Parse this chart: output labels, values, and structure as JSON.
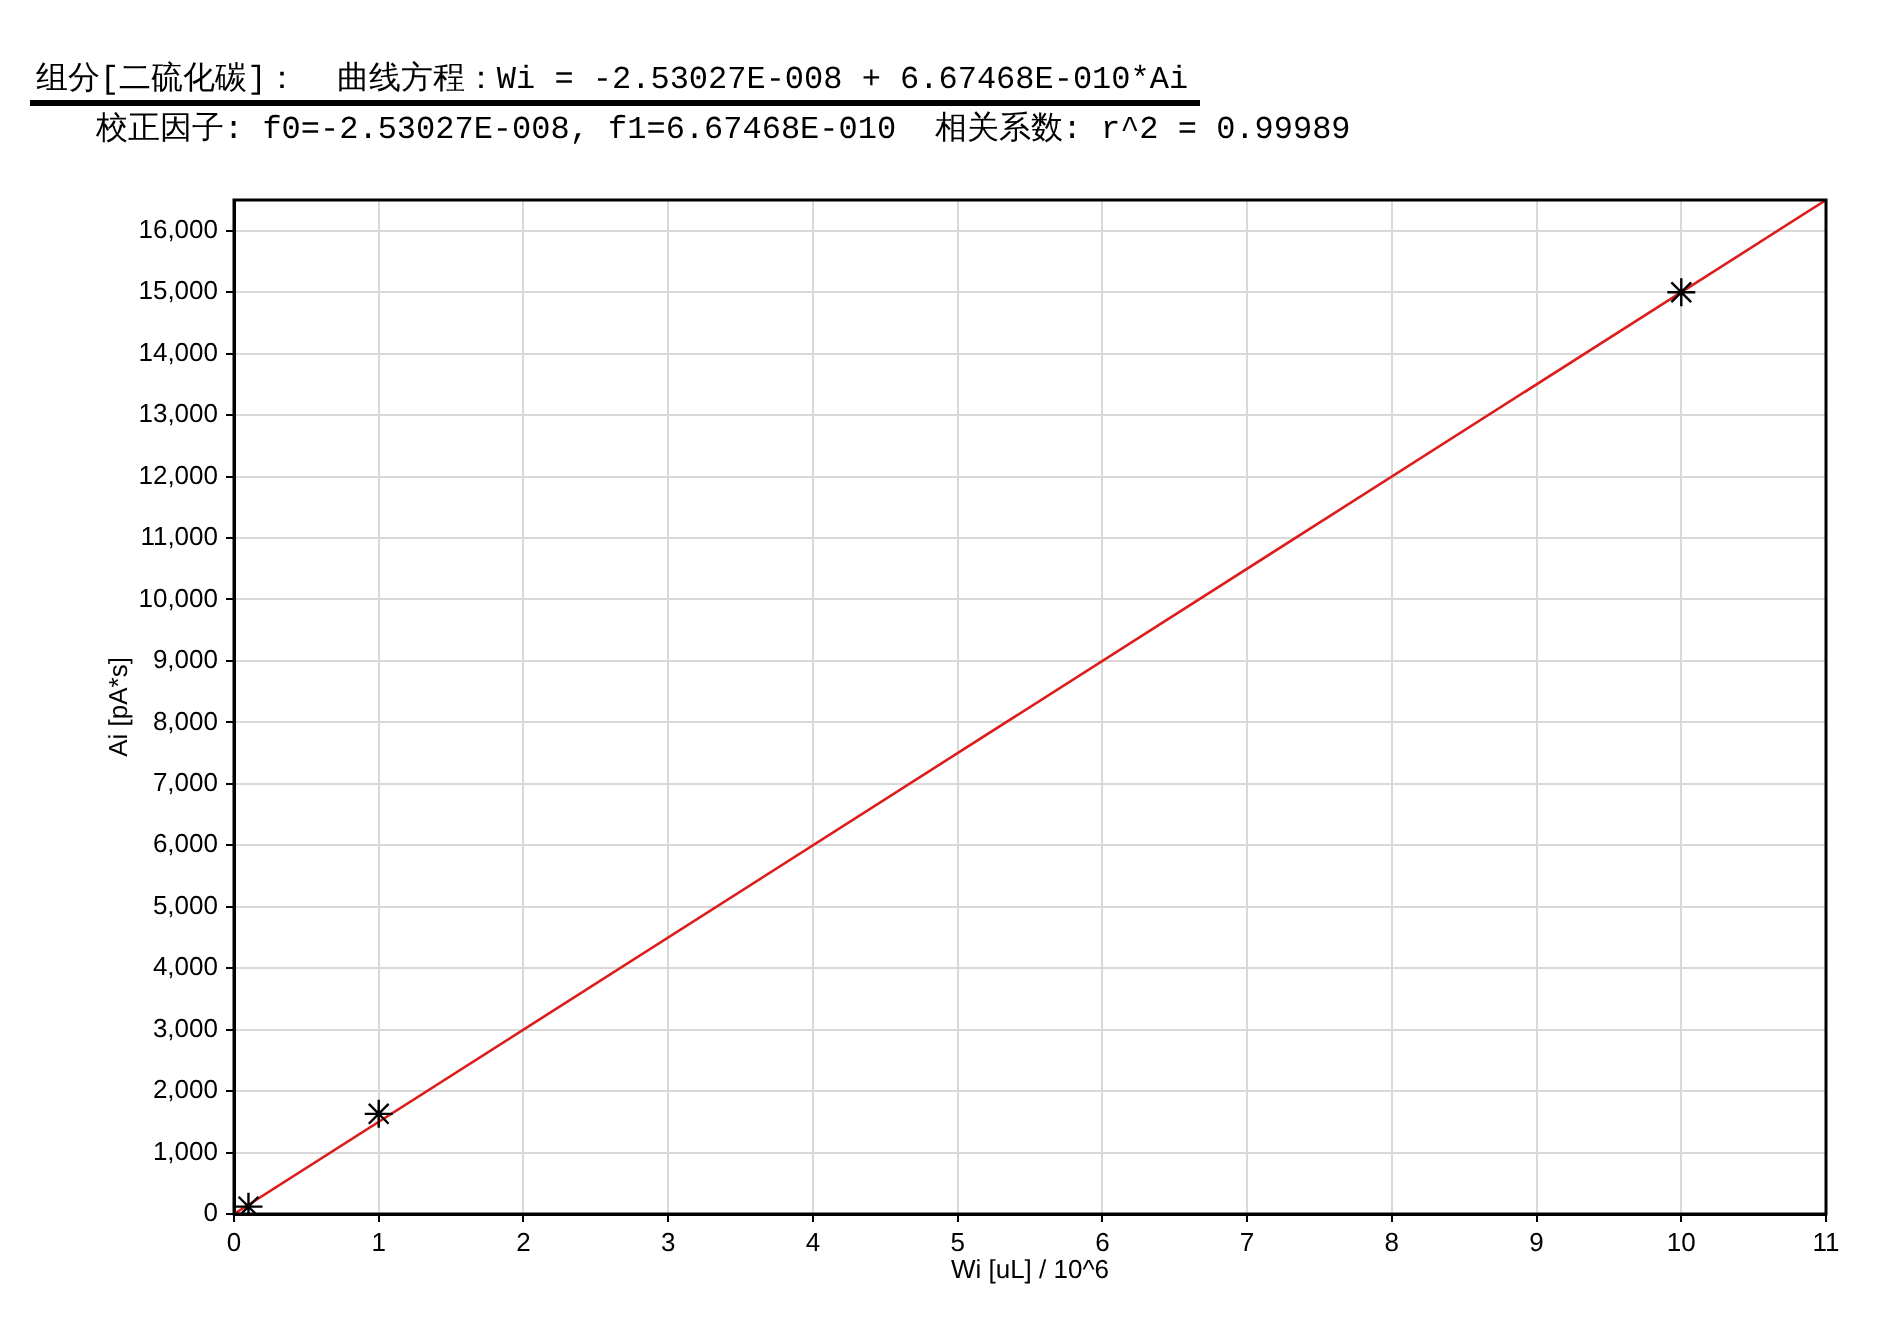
{
  "chart_data": {
    "type": "scatter",
    "title": "组分[二硫化碳]：  曲线方程：Wi = -2.53027E-008 + 6.67468E-010*Ai",
    "subtitle": "校正因子: f0=-2.53027E-008, f1=6.67468E-010  相关系数: r^2 = 0.99989",
    "xlabel": "Wi [uL] / 10^6",
    "ylabel": "Ai [pA*s]",
    "xlim": [
      0,
      11
    ],
    "xticks": [
      0,
      1,
      2,
      3,
      4,
      5,
      6,
      7,
      8,
      9,
      10,
      11
    ],
    "ylim": [
      0,
      16500
    ],
    "yticks": [
      0,
      {
        "value": 1000,
        "label": "1,000"
      },
      {
        "value": 2000,
        "label": "2,000"
      },
      {
        "value": 3000,
        "label": "3,000"
      },
      {
        "value": 4000,
        "label": "4,000"
      },
      {
        "value": 5000,
        "label": "5,000"
      },
      {
        "value": 6000,
        "label": "6,000"
      },
      {
        "value": 7000,
        "label": "7,000"
      },
      {
        "value": 8000,
        "label": "8,000"
      },
      {
        "value": 9000,
        "label": "9,000"
      },
      {
        "value": 10000,
        "label": "10,000"
      },
      {
        "value": 11000,
        "label": "11,000"
      },
      {
        "value": 12000,
        "label": "12,000"
      },
      {
        "value": 13000,
        "label": "13,000"
      },
      {
        "value": 14000,
        "label": "14,000"
      },
      {
        "value": 15000,
        "label": "15,000"
      },
      {
        "value": 16000,
        "label": "16,000"
      }
    ],
    "grid": true,
    "legend": false,
    "series": [
      {
        "type": "line",
        "color": "#dd1c1c",
        "marker": "none",
        "line_style": "solid",
        "x": [
          0,
          11
        ],
        "values": [
          0,
          16500
        ]
      },
      {
        "type": "scatter",
        "color": "#000000",
        "marker": "cross",
        "x": [
          0.1,
          1,
          10
        ],
        "values": [
          120,
          1630,
          15000
        ]
      }
    ]
  }
}
